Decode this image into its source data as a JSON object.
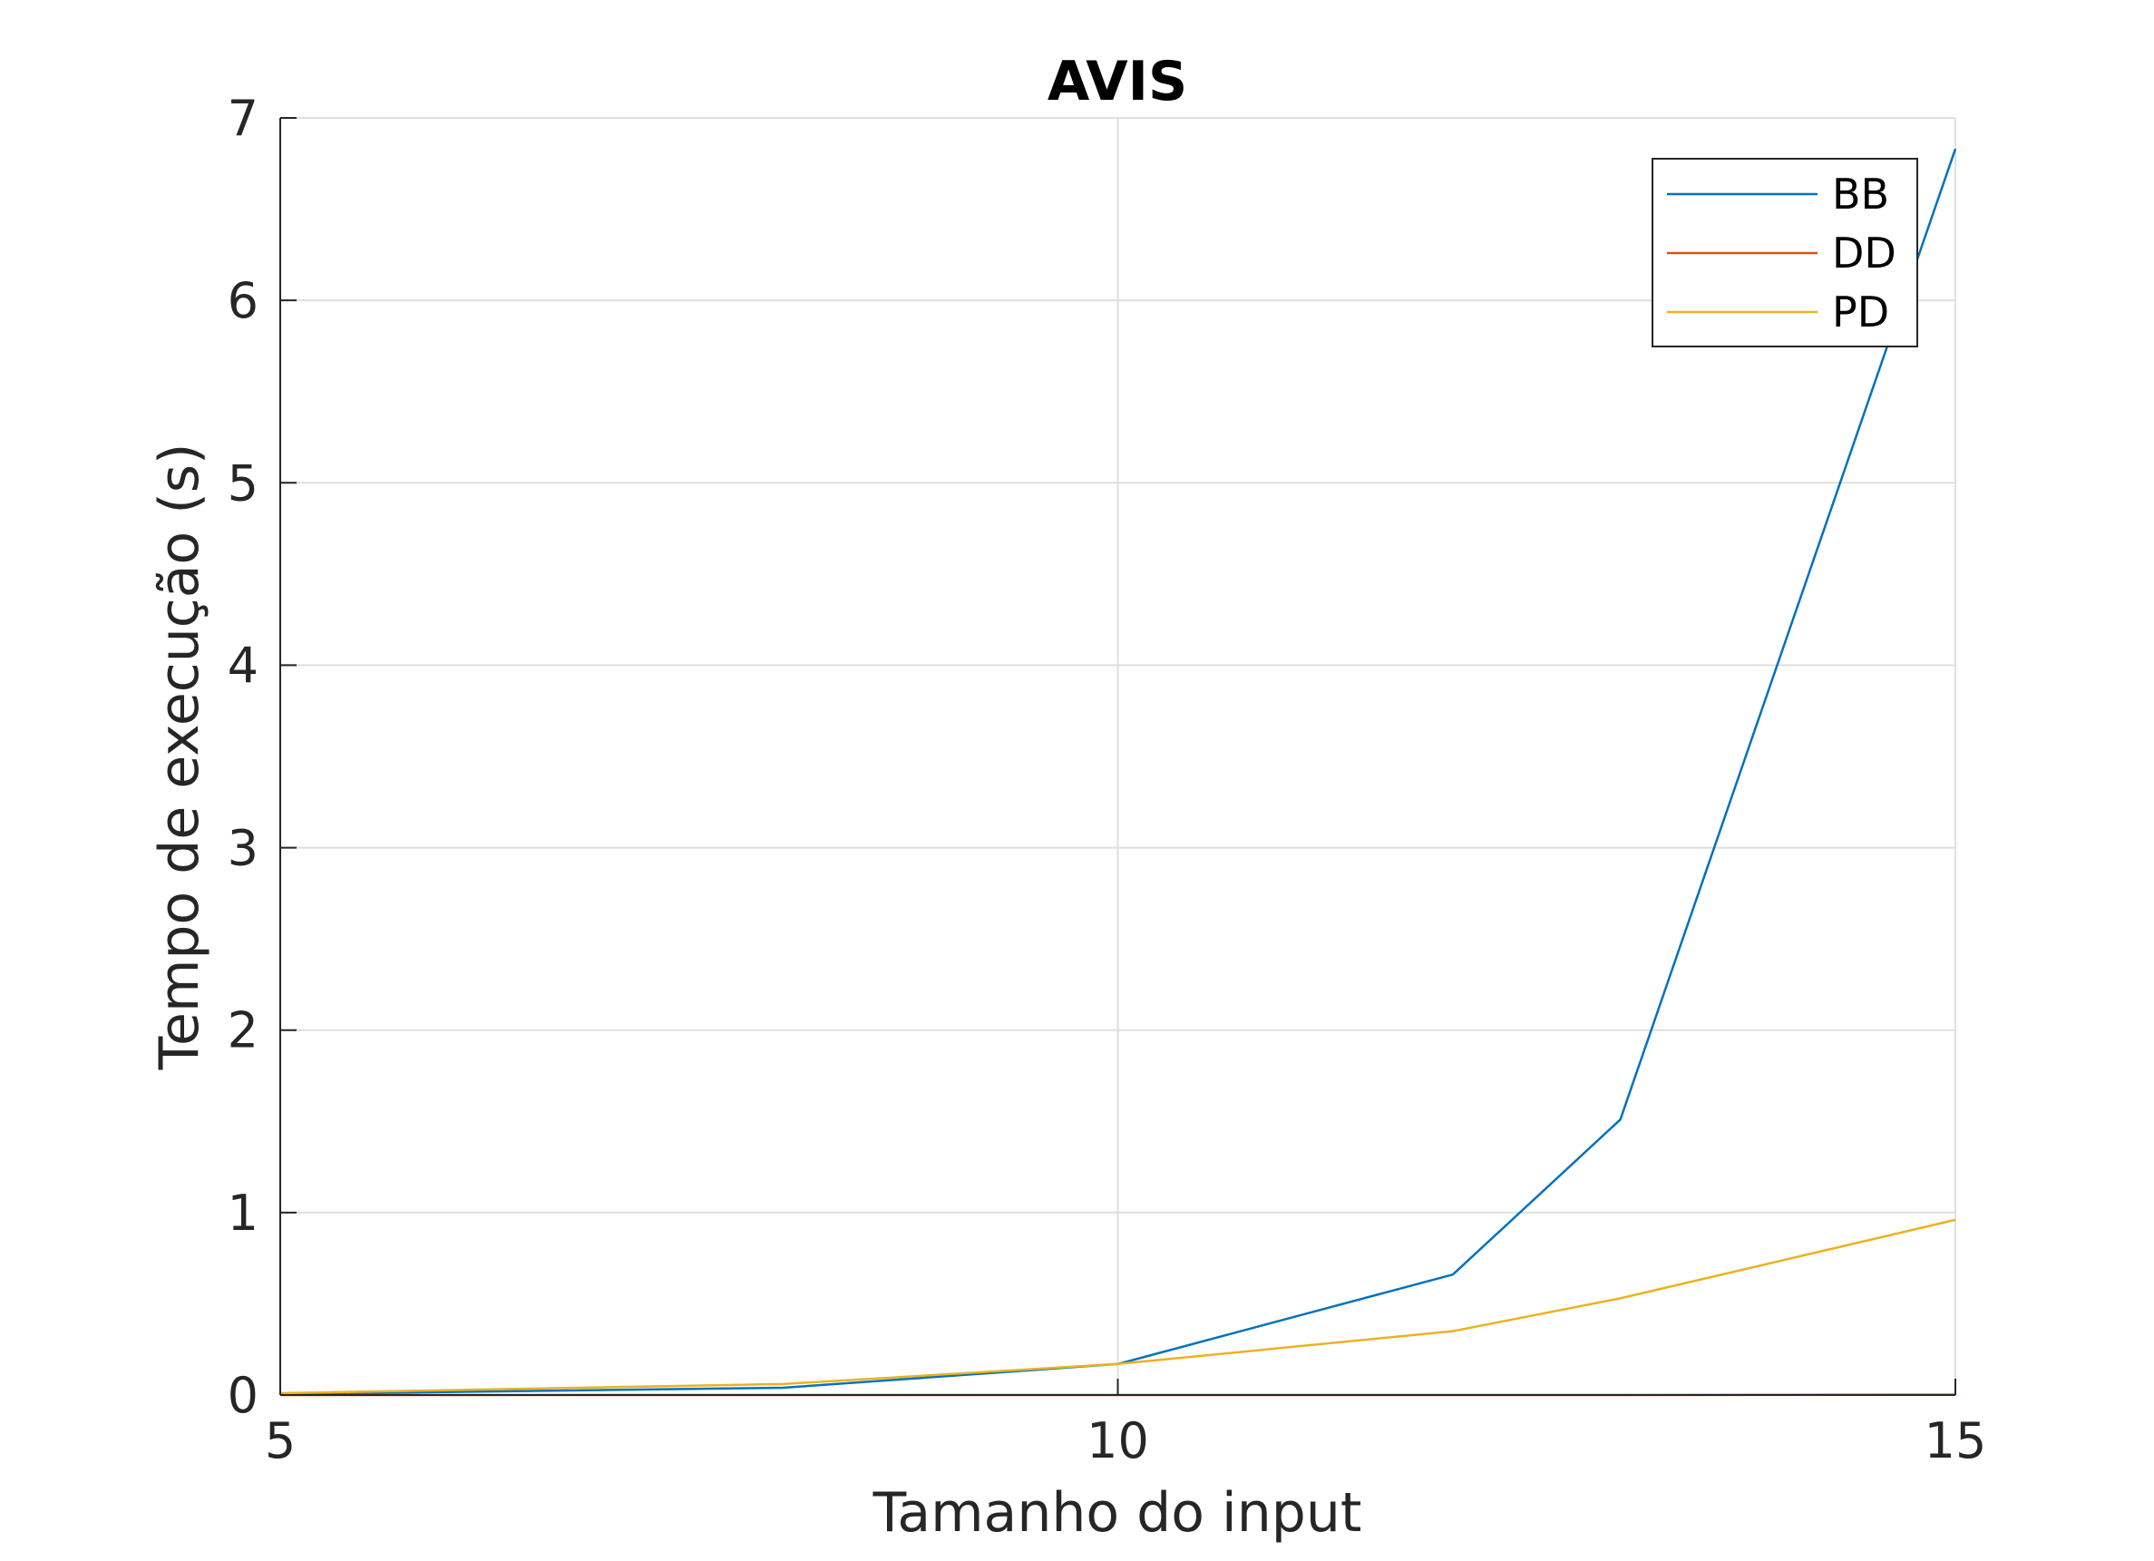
{
  "chart_data": {
    "type": "line",
    "title": "AVIS",
    "xlabel": "Tamanho do input",
    "ylabel": "Tempo de execução (s)",
    "xlim": [
      5,
      15
    ],
    "ylim": [
      0,
      7
    ],
    "x_ticks": [
      "5",
      "10",
      "15"
    ],
    "y_ticks": [
      "0",
      "1",
      "2",
      "3",
      "4",
      "5",
      "6",
      "7"
    ],
    "grid": true,
    "legend_position": "top-right",
    "series": [
      {
        "name": "BB",
        "color": "#0072BD",
        "x": [
          5,
          8,
          10,
          12,
          13,
          15
        ],
        "y": [
          0.005,
          0.04,
          0.17,
          0.66,
          1.51,
          6.83
        ]
      },
      {
        "name": "DD",
        "color": "#D95319",
        "x": [
          5,
          8,
          10,
          12,
          13,
          15
        ],
        "y": [
          0,
          0,
          0,
          0,
          0,
          0.002
        ]
      },
      {
        "name": "PD",
        "color": "#EDB120",
        "x": [
          5,
          8,
          10,
          12,
          13,
          15
        ],
        "y": [
          0.01,
          0.06,
          0.17,
          0.35,
          0.53,
          0.96
        ]
      }
    ]
  }
}
